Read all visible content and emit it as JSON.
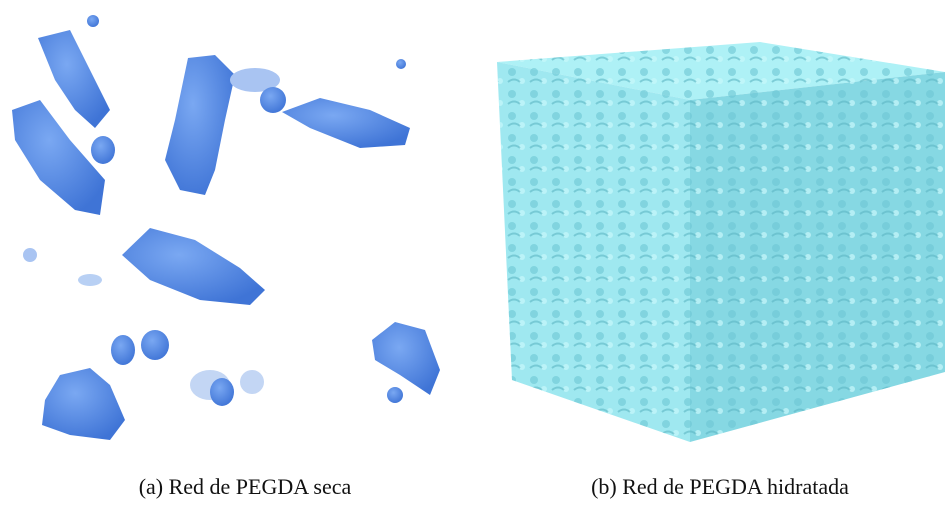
{
  "figures": [
    {
      "caption": "(a) Red de PEGDA seca"
    },
    {
      "caption": "(b) Red de PEGDA hidratada"
    }
  ]
}
